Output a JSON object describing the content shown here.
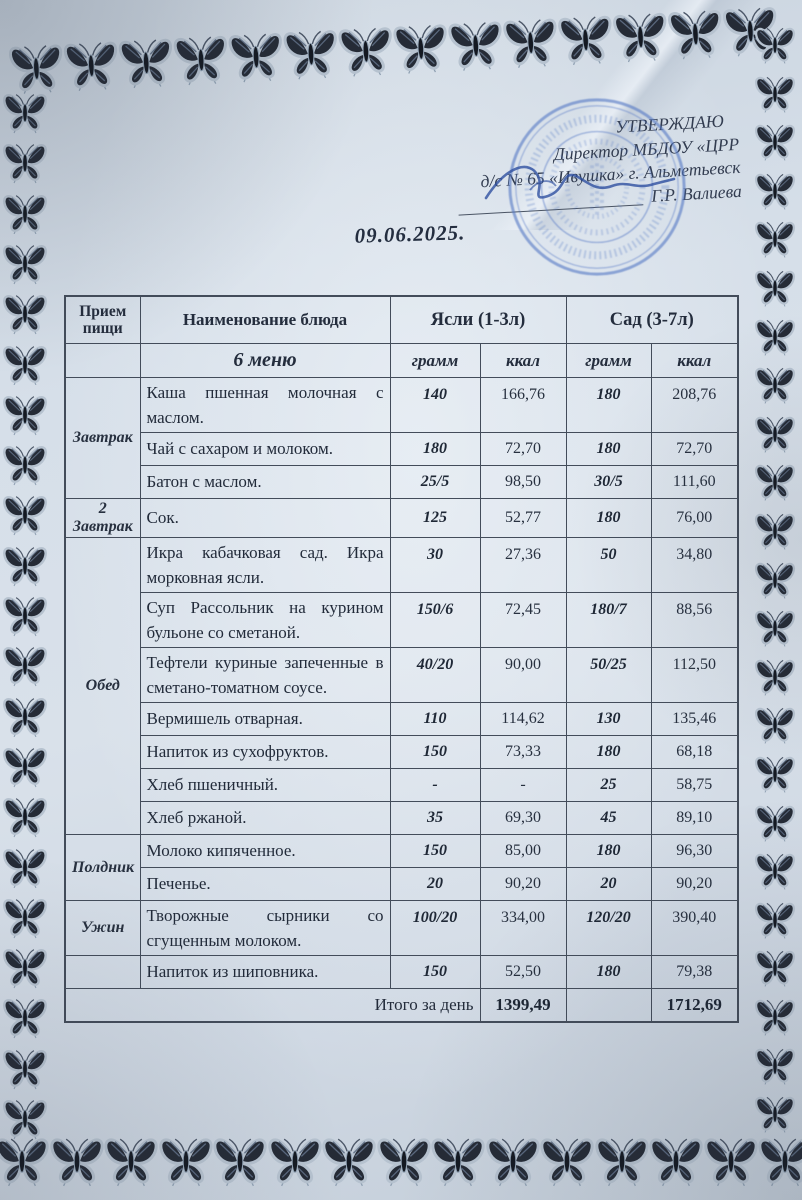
{
  "approval": {
    "line1": "УТВЕРЖДАЮ",
    "line2": "Директор МБДОУ «ЦРР",
    "line3": "д/с № 65 «Ивушка» г. Альметьевск",
    "signatory": "Г.Р. Валиева"
  },
  "date": "09.06.2025.",
  "table": {
    "headers": {
      "meal": "Прием пищи",
      "dish": "Наименование блюда",
      "nursery": "Ясли (1-3л)",
      "kindergarten": "Сад (3-7л)",
      "menu_label": "6 меню",
      "gram": "грамм",
      "kcal": "ккал"
    },
    "sections": [
      {
        "meal": "Завтрак",
        "rows": [
          {
            "dish": "Каша пшенная молочная с маслом.",
            "n_g": "140",
            "n_k": "166,76",
            "k_g": "180",
            "k_k": "208,76",
            "tall": true
          },
          {
            "dish": "Чай с сахаром и молоком.",
            "n_g": "180",
            "n_k": "72,70",
            "k_g": "180",
            "k_k": "72,70"
          },
          {
            "dish": "Батон с маслом.",
            "n_g": "25/5",
            "n_k": "98,50",
            "k_g": "30/5",
            "k_k": "111,60"
          }
        ]
      },
      {
        "meal": "2 Завтрак",
        "rows": [
          {
            "dish": "Сок.",
            "n_g": "125",
            "n_k": "52,77",
            "k_g": "180",
            "k_k": "76,00"
          }
        ]
      },
      {
        "meal": "Обед",
        "rows": [
          {
            "dish": "Икра кабачковая сад. Икра морковная ясли.",
            "n_g": "30",
            "n_k": "27,36",
            "k_g": "50",
            "k_k": "34,80",
            "tall": true
          },
          {
            "dish": "Суп Рассольник на курином бульоне со сметаной.",
            "n_g": "150/6",
            "n_k": "72,45",
            "k_g": "180/7",
            "k_k": "88,56",
            "tall": true
          },
          {
            "dish": "Тефтели куриные запеченные в сметано-томатном соусе.",
            "n_g": "40/20",
            "n_k": "90,00",
            "k_g": "50/25",
            "k_k": "112,50",
            "tall": true
          },
          {
            "dish": "Вермишель отварная.",
            "n_g": "110",
            "n_k": "114,62",
            "k_g": "130",
            "k_k": "135,46"
          },
          {
            "dish": "Напиток из сухофруктов.",
            "n_g": "150",
            "n_k": "73,33",
            "k_g": "180",
            "k_k": "68,18"
          },
          {
            "dish": "Хлеб пшеничный.",
            "n_g": "-",
            "n_k": "-",
            "k_g": "25",
            "k_k": "58,75"
          },
          {
            "dish": "Хлеб ржаной.",
            "n_g": "35",
            "n_k": "69,30",
            "k_g": "45",
            "k_k": "89,10"
          }
        ]
      },
      {
        "meal": "Полдник",
        "rows": [
          {
            "dish": "Молоко кипяченное.",
            "n_g": "150",
            "n_k": "85,00",
            "k_g": "180",
            "k_k": "96,30"
          },
          {
            "dish": "Печенье.",
            "n_g": "20",
            "n_k": "90,20",
            "k_g": "20",
            "k_k": "90,20"
          }
        ]
      },
      {
        "meal": "Ужин",
        "rows": [
          {
            "dish": "Творожные сырники со сгущенным молоком.",
            "n_g": "100/20",
            "n_k": "334,00",
            "k_g": "120/20",
            "k_k": "390,40",
            "tall": true
          }
        ]
      },
      {
        "meal": "",
        "rows": [
          {
            "dish": "Напиток из шиповника.",
            "n_g": "150",
            "n_k": "52,50",
            "k_g": "180",
            "k_k": "79,38"
          }
        ]
      }
    ],
    "footer": {
      "label": "Итого за день",
      "nursery_total": "1399,49",
      "kindergarten_total": "1712,69"
    }
  },
  "decor": {
    "border_motif": "butterflies",
    "stamp_color": "#5377c4",
    "signature_color": "#2d4f9f",
    "paper_color": "#d6dfe9"
  }
}
